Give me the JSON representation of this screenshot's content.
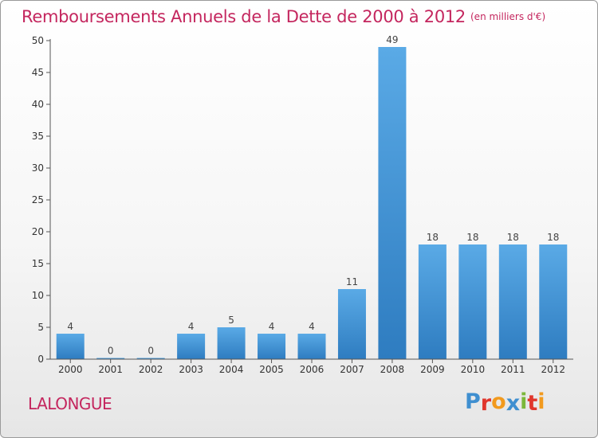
{
  "title": "Remboursements Annuels de la Dette de 2000 à 2012",
  "subtitle": "(en milliers d'€)",
  "commune": "LALONGUE",
  "logo": {
    "text": "Proxiti",
    "letters": [
      {
        "ch": "P",
        "color": "#3f8fd0"
      },
      {
        "ch": "r",
        "color": "#e0362c"
      },
      {
        "ch": "o",
        "color": "#f29a1e"
      },
      {
        "ch": "x",
        "color": "#3f8fd0"
      },
      {
        "ch": "i",
        "color": "#7bb83a"
      },
      {
        "ch": "t",
        "color": "#e0362c"
      },
      {
        "ch": "i",
        "color": "#f29a1e"
      }
    ]
  },
  "colors": {
    "title": "#c4265e",
    "bar_light": "#5aaae6",
    "bar_dark": "#2e7cc0",
    "axis": "#555555"
  },
  "chart_data": {
    "type": "bar",
    "categories": [
      "2000",
      "2001",
      "2002",
      "2003",
      "2004",
      "2005",
      "2006",
      "2007",
      "2008",
      "2009",
      "2010",
      "2011",
      "2012"
    ],
    "values": [
      4,
      0,
      0,
      4,
      5,
      4,
      4,
      11,
      49,
      18,
      18,
      18,
      18
    ],
    "data_labels": [
      "4",
      "0",
      "0",
      "4",
      "5",
      "4",
      "4",
      "11",
      "49",
      "18",
      "18",
      "18",
      "18"
    ],
    "ylim": [
      0,
      50
    ],
    "yticks": [
      0,
      5,
      10,
      15,
      20,
      25,
      30,
      35,
      40,
      45,
      50
    ],
    "xlabel": "",
    "ylabel": "",
    "grid": false,
    "legend": "none"
  }
}
